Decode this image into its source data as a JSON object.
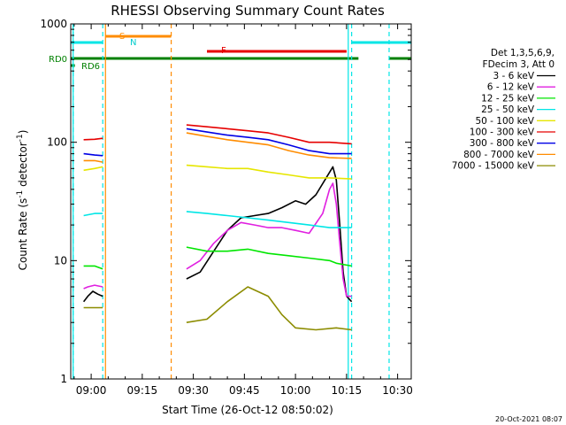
{
  "chart_data": {
    "type": "line",
    "title": "RHESSI Observing Summary Count Rates",
    "xlabel": "Start Time (26-Oct-12 08:50:02)",
    "ylabel_parts": [
      "Count Rate (s",
      "-1",
      " detector",
      "-1",
      ")"
    ],
    "ylabel": "Count Rate (s^-1 detector^-1)",
    "yscale": "log",
    "ylim": [
      1,
      1000
    ],
    "xlim": [
      -6,
      94
    ],
    "x_unit": "minutes after 09:00",
    "yticks": [
      {
        "value": 1,
        "label": "1"
      },
      {
        "value": 10,
        "label": "10"
      },
      {
        "value": 100,
        "label": "100"
      },
      {
        "value": 1000,
        "label": "1000"
      }
    ],
    "xticks": [
      {
        "value": 0,
        "label": "09:00"
      },
      {
        "value": 15,
        "label": "09:15"
      },
      {
        "value": 30,
        "label": "09:30"
      },
      {
        "value": 45,
        "label": "09:45"
      },
      {
        "value": 60,
        "label": "10:00"
      },
      {
        "value": 75,
        "label": "10:15"
      },
      {
        "value": 90,
        "label": "10:30"
      }
    ],
    "legend_header": [
      "Det 1,3,5,6,9,",
      "FDecim 3, Att 0"
    ],
    "series": [
      {
        "name": "3 - 6 keV",
        "color": "#000000",
        "segments": [
          [
            [
              -2.2,
              4.5
            ],
            [
              -1,
              5
            ],
            [
              0.5,
              5.5
            ],
            [
              2,
              5.2
            ],
            [
              3.4,
              5
            ]
          ],
          [
            [
              28,
              7
            ],
            [
              32,
              8
            ],
            [
              36,
              12
            ],
            [
              40,
              18
            ],
            [
              44,
              23
            ],
            [
              48,
              24
            ],
            [
              52,
              25
            ],
            [
              56,
              28
            ],
            [
              60,
              32
            ],
            [
              63,
              30
            ],
            [
              66,
              36
            ],
            [
              69,
              50
            ],
            [
              71,
              62
            ],
            [
              72,
              48
            ],
            [
              73,
              20
            ],
            [
              74,
              8
            ],
            [
              75,
              5
            ],
            [
              76.5,
              4.5
            ]
          ]
        ]
      },
      {
        "name": "6 - 12 keV",
        "color": "#e020e0",
        "segments": [
          [
            [
              -2.2,
              5.8
            ],
            [
              -1,
              6
            ],
            [
              1,
              6.2
            ],
            [
              3.4,
              6
            ]
          ],
          [
            [
              28,
              8.5
            ],
            [
              32,
              10
            ],
            [
              36,
              14
            ],
            [
              40,
              18
            ],
            [
              44,
              21
            ],
            [
              48,
              20
            ],
            [
              52,
              19
            ],
            [
              56,
              19
            ],
            [
              60,
              18
            ],
            [
              64,
              17
            ],
            [
              68,
              25
            ],
            [
              70,
              40
            ],
            [
              71,
              45
            ],
            [
              72,
              30
            ],
            [
              73,
              14
            ],
            [
              74,
              7
            ],
            [
              75,
              5
            ],
            [
              76.5,
              5
            ]
          ]
        ]
      },
      {
        "name": "12 - 25 keV",
        "color": "#00e600",
        "segments": [
          [
            [
              -2.2,
              9
            ],
            [
              1,
              9
            ],
            [
              3.4,
              8.5
            ]
          ],
          [
            [
              28,
              13
            ],
            [
              34,
              12
            ],
            [
              40,
              12
            ],
            [
              46,
              12.5
            ],
            [
              52,
              11.5
            ],
            [
              58,
              11
            ],
            [
              64,
              10.5
            ],
            [
              70,
              10
            ],
            [
              72,
              9.5
            ],
            [
              76.5,
              9
            ]
          ]
        ]
      },
      {
        "name": "25 - 50 keV",
        "color": "#00e6e6",
        "segments": [
          [
            [
              -2.2,
              24
            ],
            [
              1,
              25
            ],
            [
              3.4,
              25
            ]
          ],
          [
            [
              28,
              26
            ],
            [
              34,
              25
            ],
            [
              40,
              24
            ],
            [
              46,
              23
            ],
            [
              52,
              22
            ],
            [
              58,
              21
            ],
            [
              64,
              20
            ],
            [
              70,
              19
            ],
            [
              76.5,
              19
            ]
          ]
        ]
      },
      {
        "name": "50 - 100 keV",
        "color": "#e6e600",
        "segments": [
          [
            [
              -2.2,
              58
            ],
            [
              1,
              60
            ],
            [
              3.4,
              62
            ]
          ],
          [
            [
              28,
              64
            ],
            [
              34,
              62
            ],
            [
              40,
              60
            ],
            [
              46,
              60
            ],
            [
              52,
              56
            ],
            [
              58,
              53
            ],
            [
              64,
              50
            ],
            [
              70,
              50
            ],
            [
              76.5,
              49
            ]
          ]
        ]
      },
      {
        "name": "100 - 300 keV",
        "color": "#e60000",
        "segments": [
          [
            [
              -2.2,
              105
            ],
            [
              1,
              106
            ],
            [
              3.4,
              108
            ]
          ],
          [
            [
              28,
              140
            ],
            [
              34,
              135
            ],
            [
              40,
              130
            ],
            [
              46,
              125
            ],
            [
              52,
              120
            ],
            [
              58,
              110
            ],
            [
              64,
              100
            ],
            [
              70,
              100
            ],
            [
              76.5,
              97
            ]
          ]
        ]
      },
      {
        "name": "300 - 800 keV",
        "color": "#0000e6",
        "segments": [
          [
            [
              -2.2,
              80
            ],
            [
              1,
              78
            ],
            [
              3.4,
              77
            ]
          ],
          [
            [
              28,
              130
            ],
            [
              34,
              122
            ],
            [
              40,
              115
            ],
            [
              46,
              110
            ],
            [
              52,
              105
            ],
            [
              58,
              95
            ],
            [
              64,
              85
            ],
            [
              70,
              80
            ],
            [
              76.5,
              80
            ]
          ]
        ]
      },
      {
        "name": "800 - 7000 keV",
        "color": "#ff8c00",
        "segments": [
          [
            [
              -2.2,
              70
            ],
            [
              1,
              70
            ],
            [
              3.4,
              68
            ]
          ],
          [
            [
              28,
              120
            ],
            [
              34,
              112
            ],
            [
              40,
              105
            ],
            [
              46,
              100
            ],
            [
              52,
              95
            ],
            [
              58,
              85
            ],
            [
              64,
              78
            ],
            [
              70,
              74
            ],
            [
              76.5,
              73
            ]
          ]
        ]
      },
      {
        "name": "7000 - 15000 keV",
        "color": "#8c8c00",
        "segments": [
          [
            [
              -2.2,
              4
            ],
            [
              1,
              4
            ],
            [
              3.4,
              4
            ]
          ],
          [
            [
              28,
              3
            ],
            [
              34,
              3.2
            ],
            [
              40,
              4.5
            ],
            [
              46,
              6
            ],
            [
              52,
              5
            ],
            [
              56,
              3.5
            ],
            [
              60,
              2.7
            ],
            [
              66,
              2.6
            ],
            [
              72,
              2.7
            ],
            [
              76.5,
              2.6
            ]
          ]
        ]
      }
    ],
    "flags": {
      "rd0_label": "RD0",
      "rd6_label": "RD6",
      "s_label": "S",
      "n_label": "N",
      "f_label": "F"
    },
    "intervals": {
      "cyan_bar": [
        [
          -6,
          3.4
        ],
        [
          76.5,
          94
        ]
      ],
      "orange_bar": [
        [
          4.2,
          23.5
        ]
      ],
      "red_bar": [
        [
          34,
          75
        ]
      ],
      "green_bar": [
        [
          -6,
          78.5
        ],
        [
          87.5,
          94
        ]
      ],
      "green_small": [
        [
          -6,
          -4.8
        ]
      ]
    },
    "markers": {
      "cyan_dashed": [
        -5.3,
        3.4,
        76.5,
        87.5
      ],
      "cyan_solid": [
        -5.3,
        75.5
      ],
      "orange_dashed": [
        23.5
      ],
      "orange_solid": [
        4.2
      ]
    },
    "footnote": "20-Oct-2021 08:07"
  }
}
